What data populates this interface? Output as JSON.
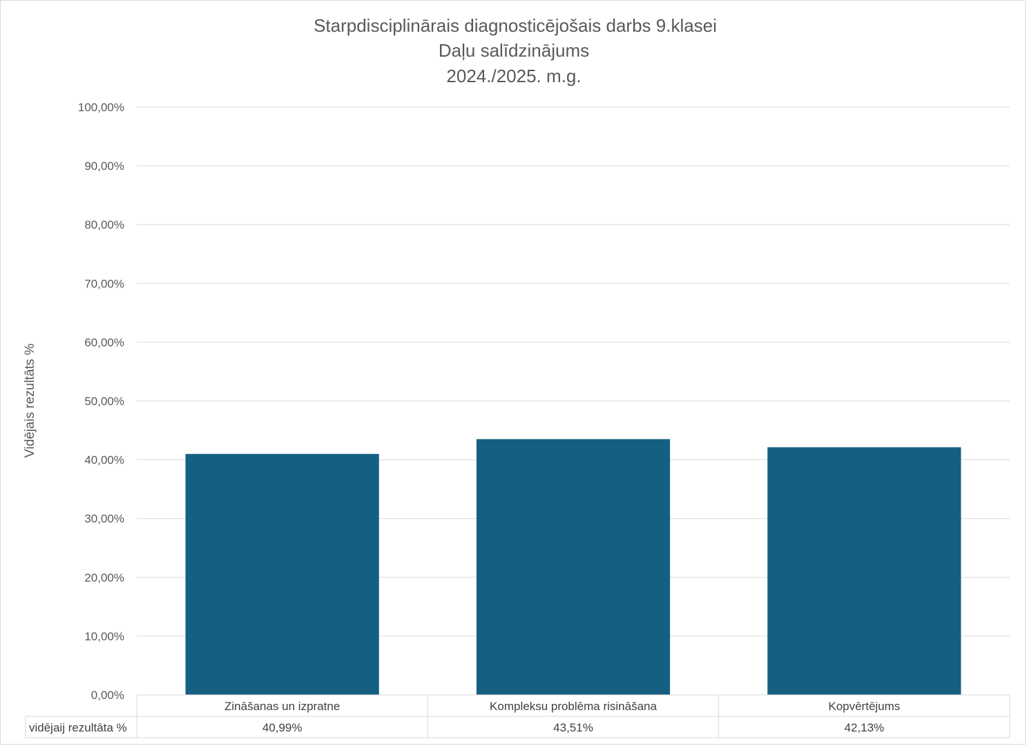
{
  "chart_data": {
    "type": "bar",
    "title_lines": [
      "Starpdisciplinārais diagnosticējošais darbs 9.klasei",
      "Daļu salīdzinājums",
      "2024./2025. m.g."
    ],
    "ylabel": "Vidējais rezultāts %",
    "ylim": [
      0,
      100
    ],
    "yticks": [
      0,
      10,
      20,
      30,
      40,
      50,
      60,
      70,
      80,
      90,
      100
    ],
    "ytick_labels": [
      "0,00%",
      "10,00%",
      "20,00%",
      "30,00%",
      "40,00%",
      "50,00%",
      "60,00%",
      "70,00%",
      "80,00%",
      "90,00%",
      "100,00%"
    ],
    "categories": [
      "Zināšanas un izpratne",
      "Kompleksu problēma risināšana",
      "Kopvērtējums"
    ],
    "series": [
      {
        "name": "vidējaij rezultāta %",
        "values": [
          40.99,
          43.51,
          42.13
        ],
        "value_labels": [
          "40,99%",
          "43,51%",
          "42,13%"
        ]
      }
    ],
    "grid": true,
    "bar_color": "#156082",
    "data_table": true
  }
}
